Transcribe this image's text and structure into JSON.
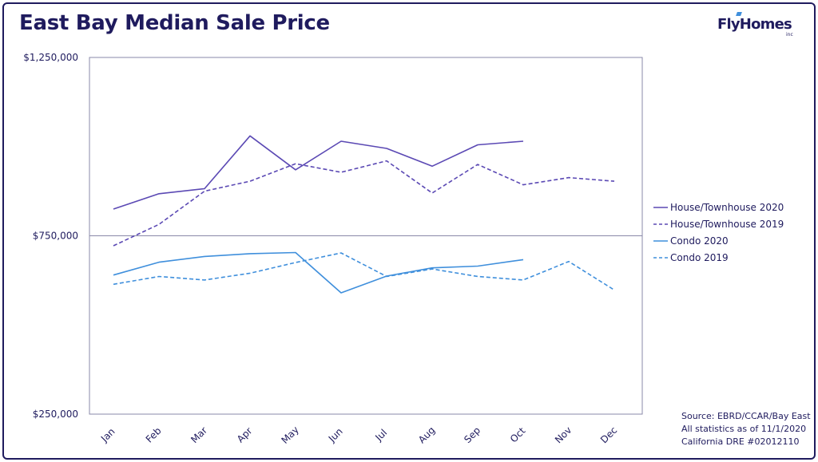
{
  "header": {
    "title": "East Bay Median Sale Price",
    "logo_text": "FlyHomes",
    "logo_sub": "inc"
  },
  "footer": {
    "source_lines": [
      "Source: EBRD/CCAR/Bay East",
      "All statistics as of 11/1/2020",
      "California DRE #02012110"
    ]
  },
  "colors": {
    "house": "#5b49b4",
    "condo": "#3f8fdc",
    "text": "#1f1b5e"
  },
  "chart_data": {
    "type": "line",
    "title": "East Bay Median Sale Price",
    "categories": [
      "Jan",
      "Feb",
      "Mar",
      "Apr",
      "May",
      "Jun",
      "Jul",
      "Aug",
      "Sep",
      "Oct",
      "Nov",
      "Dec"
    ],
    "ylim": [
      250000,
      1250000
    ],
    "y_ticks": [
      {
        "value": 250000,
        "label": "$250,000"
      },
      {
        "value": 750000,
        "label": "$750,000"
      },
      {
        "value": 1250000,
        "label": "$1,250,000"
      }
    ],
    "grid": "horizontal line at $750,000",
    "legend_position": "right",
    "series": [
      {
        "name": "House/Townhouse 2020",
        "color": "#5b49b4",
        "dash": false,
        "values": [
          825000,
          868000,
          882000,
          1030000,
          935000,
          1015000,
          995000,
          945000,
          1005000,
          1015000,
          null,
          null
        ]
      },
      {
        "name": "House/Townhouse 2019",
        "color": "#5b49b4",
        "dash": true,
        "values": [
          722000,
          782000,
          875000,
          903000,
          952000,
          928000,
          960000,
          870000,
          950000,
          893000,
          913000,
          903000
        ]
      },
      {
        "name": "Condo 2020",
        "color": "#3f8fdc",
        "dash": false,
        "values": [
          640000,
          676000,
          692000,
          700000,
          703000,
          590000,
          637000,
          660000,
          665000,
          683000,
          null,
          null
        ]
      },
      {
        "name": "Condo 2019",
        "color": "#3f8fdc",
        "dash": true,
        "values": [
          614000,
          636000,
          626000,
          645000,
          675000,
          702000,
          636000,
          657000,
          636000,
          626000,
          678000,
          598000
        ]
      }
    ]
  }
}
